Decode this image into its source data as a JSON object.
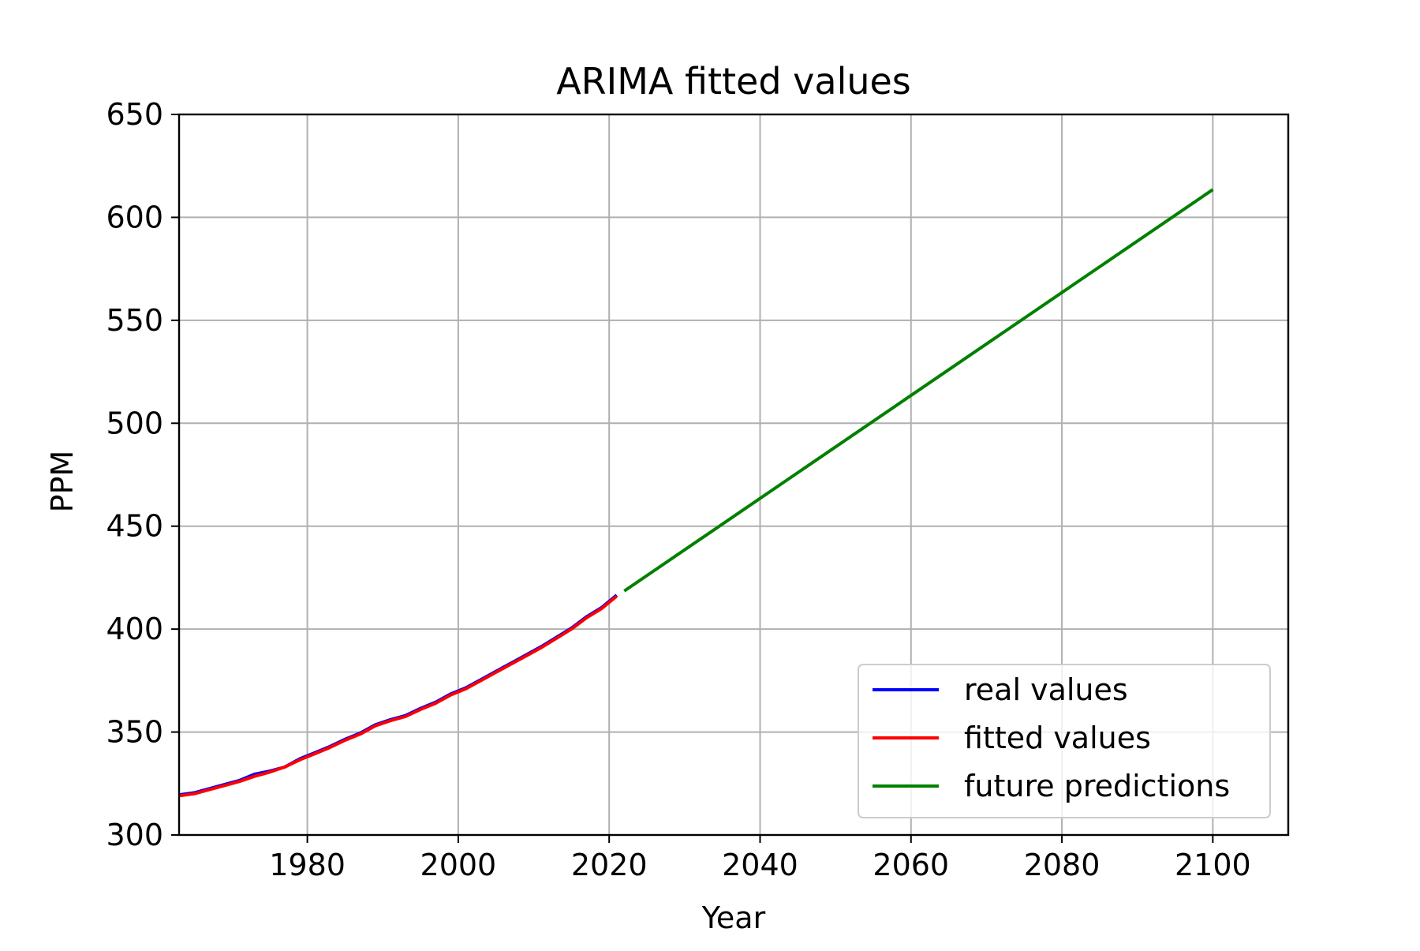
{
  "chart_data": {
    "type": "line",
    "title": "ARIMA fitted values",
    "xlabel": "Year",
    "ylabel": "PPM",
    "xlim": [
      1963,
      2110
    ],
    "ylim": [
      300,
      650
    ],
    "xticks": [
      1980,
      2000,
      2020,
      2040,
      2060,
      2080,
      2100
    ],
    "yticks": [
      300,
      350,
      400,
      450,
      500,
      550,
      600,
      650
    ],
    "grid": true,
    "legend_position": "lower-right",
    "series": [
      {
        "name": "real values",
        "color": "#0000ff",
        "x": [
          1963,
          1965,
          1967,
          1969,
          1971,
          1973,
          1975,
          1977,
          1979,
          1981,
          1983,
          1985,
          1987,
          1989,
          1991,
          1993,
          1995,
          1997,
          1999,
          2001,
          2003,
          2005,
          2007,
          2009,
          2011,
          2013,
          2015,
          2017,
          2019,
          2021
        ],
        "y": [
          319.5,
          320.5,
          322.5,
          324.5,
          326.5,
          329.5,
          331.0,
          333.0,
          337.0,
          340.0,
          343.0,
          346.5,
          349.5,
          353.5,
          356.0,
          358.0,
          361.5,
          364.5,
          368.5,
          371.5,
          375.5,
          379.5,
          383.5,
          387.5,
          391.5,
          396.0,
          400.5,
          406.0,
          410.5,
          416.5
        ]
      },
      {
        "name": "fitted values",
        "color": "#ff0000",
        "x": [
          1963,
          1965,
          1967,
          1969,
          1971,
          1973,
          1975,
          1977,
          1979,
          1981,
          1983,
          1985,
          1987,
          1989,
          1991,
          1993,
          1995,
          1997,
          1999,
          2001,
          2003,
          2005,
          2007,
          2009,
          2011,
          2013,
          2015,
          2017,
          2019,
          2021
        ],
        "y": [
          319.0,
          320.0,
          322.0,
          324.0,
          326.0,
          328.5,
          330.5,
          333.0,
          336.5,
          339.5,
          342.5,
          346.0,
          349.0,
          353.0,
          355.5,
          357.5,
          361.0,
          364.0,
          368.0,
          371.0,
          375.0,
          379.0,
          383.0,
          387.0,
          391.0,
          395.5,
          400.0,
          405.5,
          410.0,
          416.0
        ]
      },
      {
        "name": "future predictions",
        "color": "#008000",
        "x": [
          2022,
          2100
        ],
        "y": [
          418.5,
          613.5
        ]
      }
    ]
  }
}
